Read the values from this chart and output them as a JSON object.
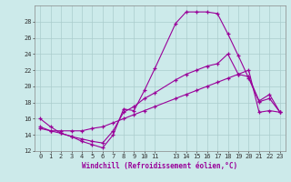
{
  "xlabel": "Windchill (Refroidissement éolien,°C)",
  "background_color": "#cceaea",
  "grid_color": "#aacccc",
  "line_color": "#990099",
  "xlim": [
    -0.5,
    23.5
  ],
  "ylim": [
    12,
    30
  ],
  "yticks": [
    12,
    14,
    16,
    18,
    20,
    22,
    24,
    26,
    28
  ],
  "xticks": [
    0,
    1,
    2,
    3,
    4,
    5,
    6,
    7,
    8,
    9,
    10,
    11,
    13,
    14,
    15,
    16,
    17,
    18,
    19,
    20,
    21,
    22,
    23
  ],
  "line1_x": [
    0,
    1,
    2,
    3,
    4,
    5,
    6,
    7,
    8,
    9,
    10,
    11,
    13,
    14,
    15,
    16,
    17,
    18,
    19,
    20,
    21,
    22,
    23
  ],
  "line1_y": [
    16.0,
    15.0,
    14.2,
    13.8,
    13.2,
    12.8,
    12.4,
    14.0,
    17.2,
    17.0,
    19.5,
    22.2,
    27.8,
    29.2,
    29.2,
    29.2,
    29.0,
    26.5,
    23.8,
    21.0,
    18.1,
    18.5,
    16.8
  ],
  "line2_x": [
    0,
    1,
    2,
    3,
    4,
    5,
    6,
    7,
    8,
    9,
    10,
    11,
    13,
    14,
    15,
    16,
    17,
    18,
    19,
    20,
    21,
    22,
    23
  ],
  "line2_y": [
    15.0,
    14.5,
    14.2,
    13.8,
    13.5,
    13.2,
    13.0,
    14.5,
    16.8,
    17.5,
    18.5,
    19.2,
    20.8,
    21.5,
    22.0,
    22.5,
    22.8,
    24.0,
    21.5,
    21.2,
    18.2,
    19.0,
    16.8
  ],
  "line3_x": [
    0,
    1,
    2,
    3,
    4,
    5,
    6,
    7,
    8,
    9,
    10,
    11,
    13,
    14,
    15,
    16,
    17,
    18,
    19,
    20,
    21,
    22,
    23
  ],
  "line3_y": [
    14.8,
    14.5,
    14.5,
    14.5,
    14.5,
    14.8,
    15.0,
    15.5,
    16.0,
    16.5,
    17.0,
    17.5,
    18.5,
    19.0,
    19.5,
    20.0,
    20.5,
    21.0,
    21.5,
    22.0,
    16.8,
    17.0,
    16.8
  ]
}
